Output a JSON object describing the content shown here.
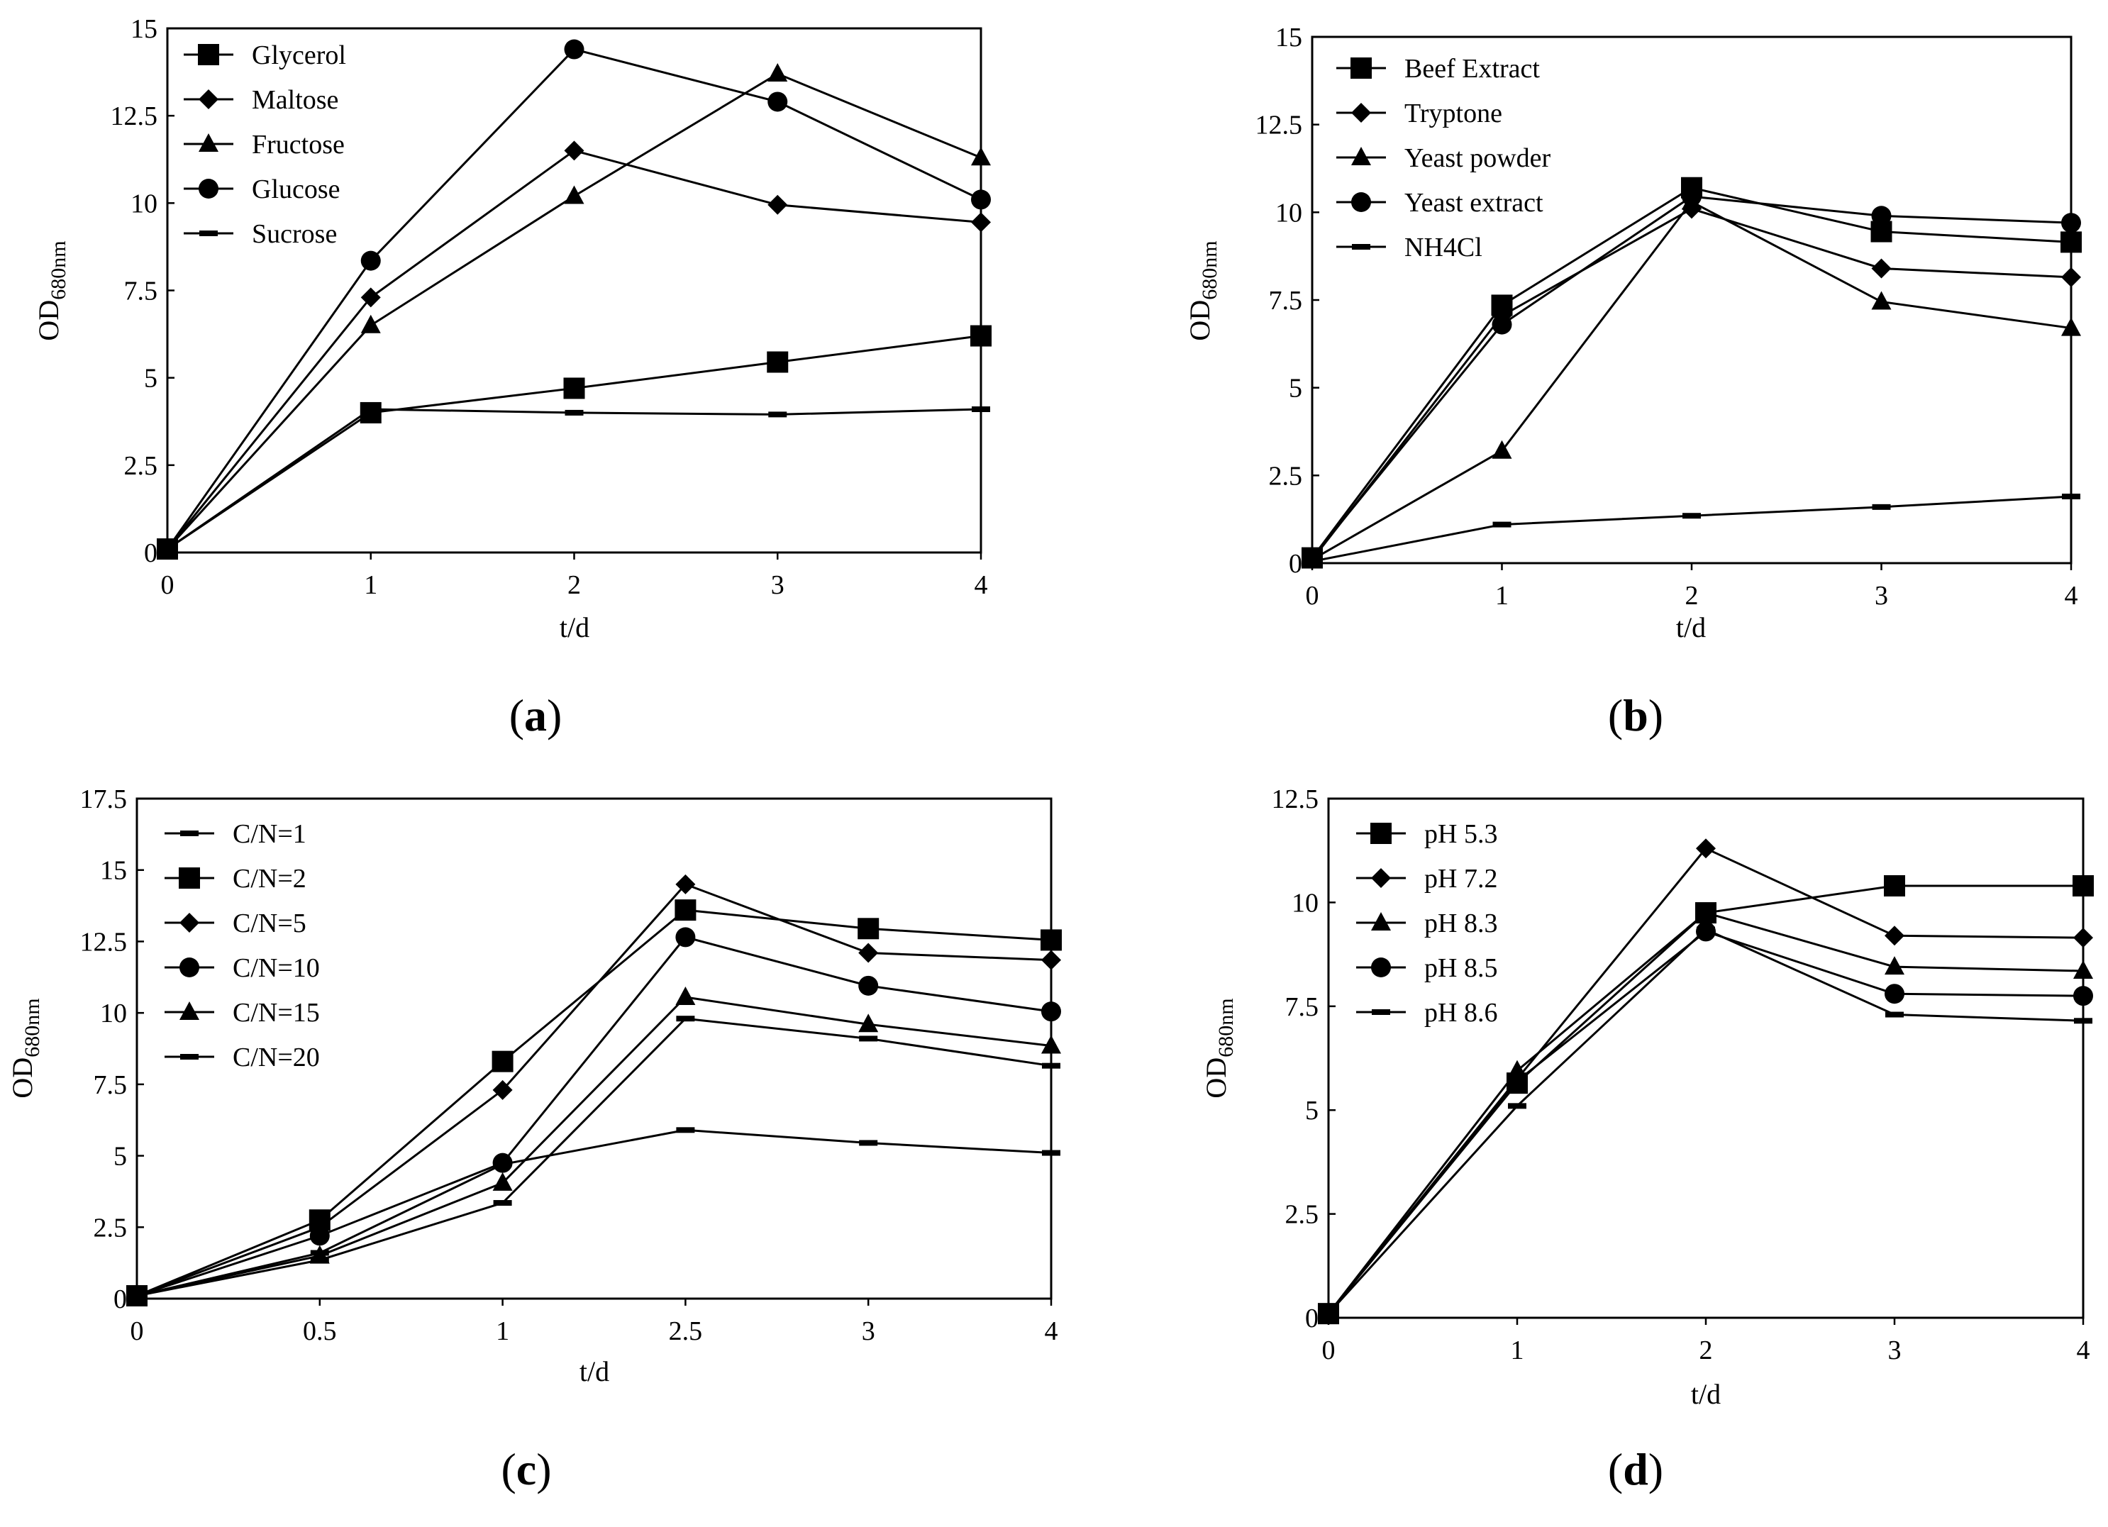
{
  "chart_data": [
    {
      "type": "line",
      "panel": "a",
      "caption_letter": "a",
      "xlabel": "t/d",
      "ylabel": "OD",
      "ylabel_sub": "680nm",
      "x": [
        0,
        1,
        2,
        3,
        4
      ],
      "x_tick_labels": [
        "0",
        "1",
        "2",
        "3",
        "4"
      ],
      "y_ticks": [
        0,
        2.5,
        5,
        7.5,
        10,
        12.5,
        15
      ],
      "y_tick_labels": [
        "0",
        "2.5",
        "5",
        "7.5",
        "10",
        "12.5",
        "15"
      ],
      "ylim": [
        0,
        15
      ],
      "legend_position": "top-left",
      "series": [
        {
          "name": "Glycerol",
          "marker": "square",
          "values": [
            0.1,
            4.0,
            4.7,
            5.45,
            6.2
          ]
        },
        {
          "name": "Maltose",
          "marker": "diamond",
          "values": [
            0.1,
            7.3,
            11.5,
            9.95,
            9.45
          ]
        },
        {
          "name": "Fructose",
          "marker": "triangle",
          "values": [
            0.1,
            6.5,
            10.2,
            13.7,
            11.3
          ]
        },
        {
          "name": "Glucose",
          "marker": "circle",
          "values": [
            0.1,
            8.35,
            14.4,
            12.9,
            10.1
          ]
        },
        {
          "name": "Sucrose",
          "marker": "dash",
          "values": [
            0.1,
            4.1,
            4.0,
            3.95,
            4.1
          ]
        }
      ]
    },
    {
      "type": "line",
      "panel": "b",
      "caption_letter": "b",
      "xlabel": "t/d",
      "ylabel": "OD",
      "ylabel_sub": "680nm",
      "x": [
        0,
        1,
        2,
        3,
        4
      ],
      "x_tick_labels": [
        "0",
        "1",
        "2",
        "3",
        "4"
      ],
      "y_ticks": [
        0,
        2.5,
        5,
        7.5,
        10,
        12.5,
        15
      ],
      "y_tick_labels": [
        "0",
        "2.5",
        "5",
        "7.5",
        "10",
        "12.5",
        "15"
      ],
      "ylim": [
        0,
        15
      ],
      "legend_position": "top-left",
      "series": [
        {
          "name": "Beef Extract",
          "marker": "square",
          "values": [
            0.15,
            7.35,
            10.7,
            9.45,
            9.15
          ]
        },
        {
          "name": "Tryptone",
          "marker": "diamond",
          "values": [
            0.1,
            7.05,
            10.1,
            8.4,
            8.15
          ]
        },
        {
          "name": "Yeast powder",
          "marker": "triangle",
          "values": [
            0.1,
            3.2,
            10.3,
            7.45,
            6.7
          ]
        },
        {
          "name": "Yeast extract",
          "marker": "circle",
          "values": [
            0.15,
            6.8,
            10.45,
            9.9,
            9.7
          ]
        },
        {
          "name": "NH4Cl",
          "marker": "dash",
          "values": [
            0.05,
            1.1,
            1.35,
            1.6,
            1.9
          ]
        }
      ]
    },
    {
      "type": "line",
      "panel": "c",
      "caption_letter": "c",
      "xlabel": "t/d",
      "ylabel": "OD",
      "ylabel_sub": "680nm",
      "x": [
        0,
        0.5,
        1,
        2.5,
        3,
        4
      ],
      "x_tick_labels": [
        "0",
        "0.5",
        "1",
        "2.5",
        "3",
        "4"
      ],
      "x_is_categorical": true,
      "y_ticks": [
        0,
        2.5,
        5,
        7.5,
        10,
        12.5,
        15,
        17.5
      ],
      "y_tick_labels": [
        "0",
        "2.5",
        "5",
        "7.5",
        "10",
        "12.5",
        "15",
        "17.5"
      ],
      "ylim": [
        0,
        17.5
      ],
      "legend_position": "top-left",
      "series": [
        {
          "name": "C/N=1",
          "marker": "dash",
          "values": [
            0.1,
            1.6,
            4.7,
            5.9,
            5.45,
            5.1
          ]
        },
        {
          "name": "C/N=2",
          "marker": "square",
          "values": [
            0.1,
            2.75,
            8.3,
            13.6,
            12.95,
            12.55
          ]
        },
        {
          "name": "C/N=5",
          "marker": "diamond",
          "values": [
            0.1,
            2.5,
            7.3,
            14.5,
            12.1,
            11.85
          ]
        },
        {
          "name": "C/N=10",
          "marker": "circle",
          "values": [
            0.1,
            2.2,
            4.75,
            12.65,
            10.95,
            10.05
          ]
        },
        {
          "name": "C/N=15",
          "marker": "triangle",
          "values": [
            0.1,
            1.5,
            4.05,
            10.55,
            9.6,
            8.85
          ]
        },
        {
          "name": "C/N=20",
          "marker": "dash",
          "values": [
            0.1,
            1.35,
            3.35,
            9.8,
            9.1,
            8.15
          ]
        }
      ]
    },
    {
      "type": "line",
      "panel": "d",
      "caption_letter": "d",
      "xlabel": "t/d",
      "ylabel": "OD",
      "ylabel_sub": "680nm",
      "x": [
        0,
        1,
        2,
        3,
        4
      ],
      "x_tick_labels": [
        "0",
        "1",
        "2",
        "3",
        "4"
      ],
      "y_ticks": [
        0,
        2.5,
        5,
        7.5,
        10,
        12.5
      ],
      "y_tick_labels": [
        "0",
        "2.5",
        "5",
        "7.5",
        "10",
        "12.5"
      ],
      "ylim": [
        0,
        12.5
      ],
      "legend_position": "top-left",
      "series": [
        {
          "name": "pH 5.3",
          "marker": "square",
          "values": [
            0.1,
            5.65,
            9.75,
            10.4,
            10.4
          ]
        },
        {
          "name": "pH 7.2",
          "marker": "diamond",
          "values": [
            0.1,
            5.75,
            11.3,
            9.2,
            9.15
          ]
        },
        {
          "name": "pH 8.3",
          "marker": "triangle",
          "values": [
            0.1,
            5.95,
            9.75,
            8.45,
            8.35
          ]
        },
        {
          "name": "pH 8.5",
          "marker": "circle",
          "values": [
            0.1,
            5.7,
            9.3,
            7.8,
            7.75
          ]
        },
        {
          "name": "pH 8.6",
          "marker": "dash",
          "values": [
            0.1,
            5.1,
            9.35,
            7.3,
            7.15
          ]
        }
      ]
    }
  ]
}
